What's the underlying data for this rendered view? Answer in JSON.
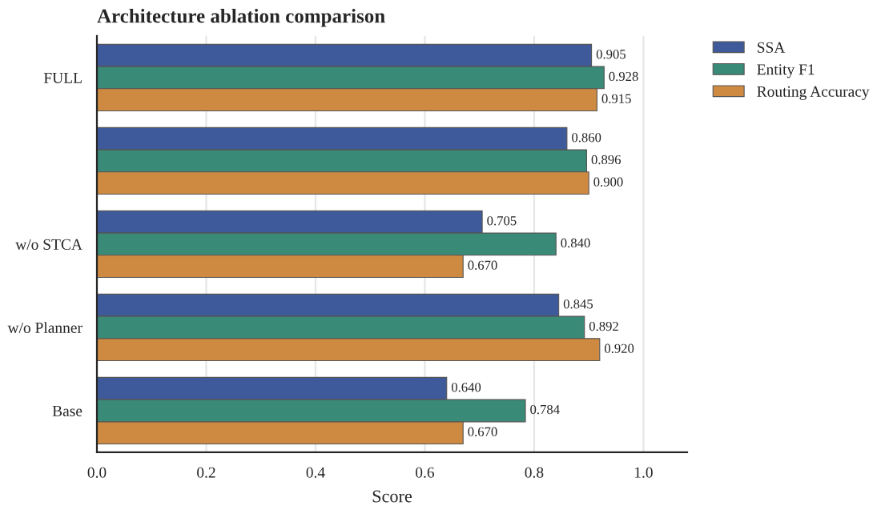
{
  "chart_data": {
    "type": "bar",
    "orientation": "horizontal",
    "title": "Architecture ablation comparison",
    "xlabel": "Score",
    "categories": [
      "FULL",
      null,
      "w/o STCA",
      "w/o Planner",
      "Base"
    ],
    "series": [
      {
        "name": "SSA",
        "color": "#3f5a9b",
        "values": [
          0.905,
          0.86,
          0.705,
          0.845,
          0.64
        ],
        "value_labels": [
          "0.905",
          "0.860",
          "0.705",
          "0.845",
          "0.640"
        ]
      },
      {
        "name": "Entity F1",
        "color": "#3a8a78",
        "values": [
          0.928,
          0.896,
          0.84,
          0.892,
          0.784
        ],
        "value_labels": [
          "0.928",
          "0.896",
          "0.840",
          "0.892",
          "0.784"
        ]
      },
      {
        "name": "Routing Accuracy",
        "color": "#cf8a42",
        "values": [
          0.915,
          0.9,
          0.67,
          0.92,
          0.67
        ],
        "value_labels": [
          "0.915",
          "0.900",
          "0.670",
          "0.920",
          "0.670"
        ]
      }
    ],
    "xlim": [
      0,
      1.08
    ],
    "xticks": [
      {
        "value": 0,
        "label": "0.0"
      },
      {
        "value": 0.2,
        "label": "0.2"
      },
      {
        "value": 0.4,
        "label": "0.4"
      },
      {
        "value": 0.6,
        "label": "0.6"
      },
      {
        "value": 0.8,
        "label": "0.8"
      },
      {
        "value": 1.0,
        "label": "1.0"
      }
    ],
    "grid": "x",
    "legend": "top right"
  }
}
